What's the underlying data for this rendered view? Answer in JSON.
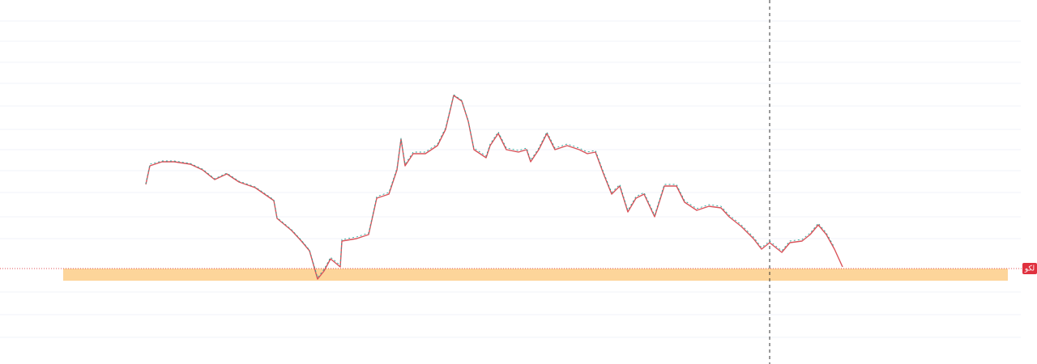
{
  "price_tag": {
    "label": "لکو"
  }
}
